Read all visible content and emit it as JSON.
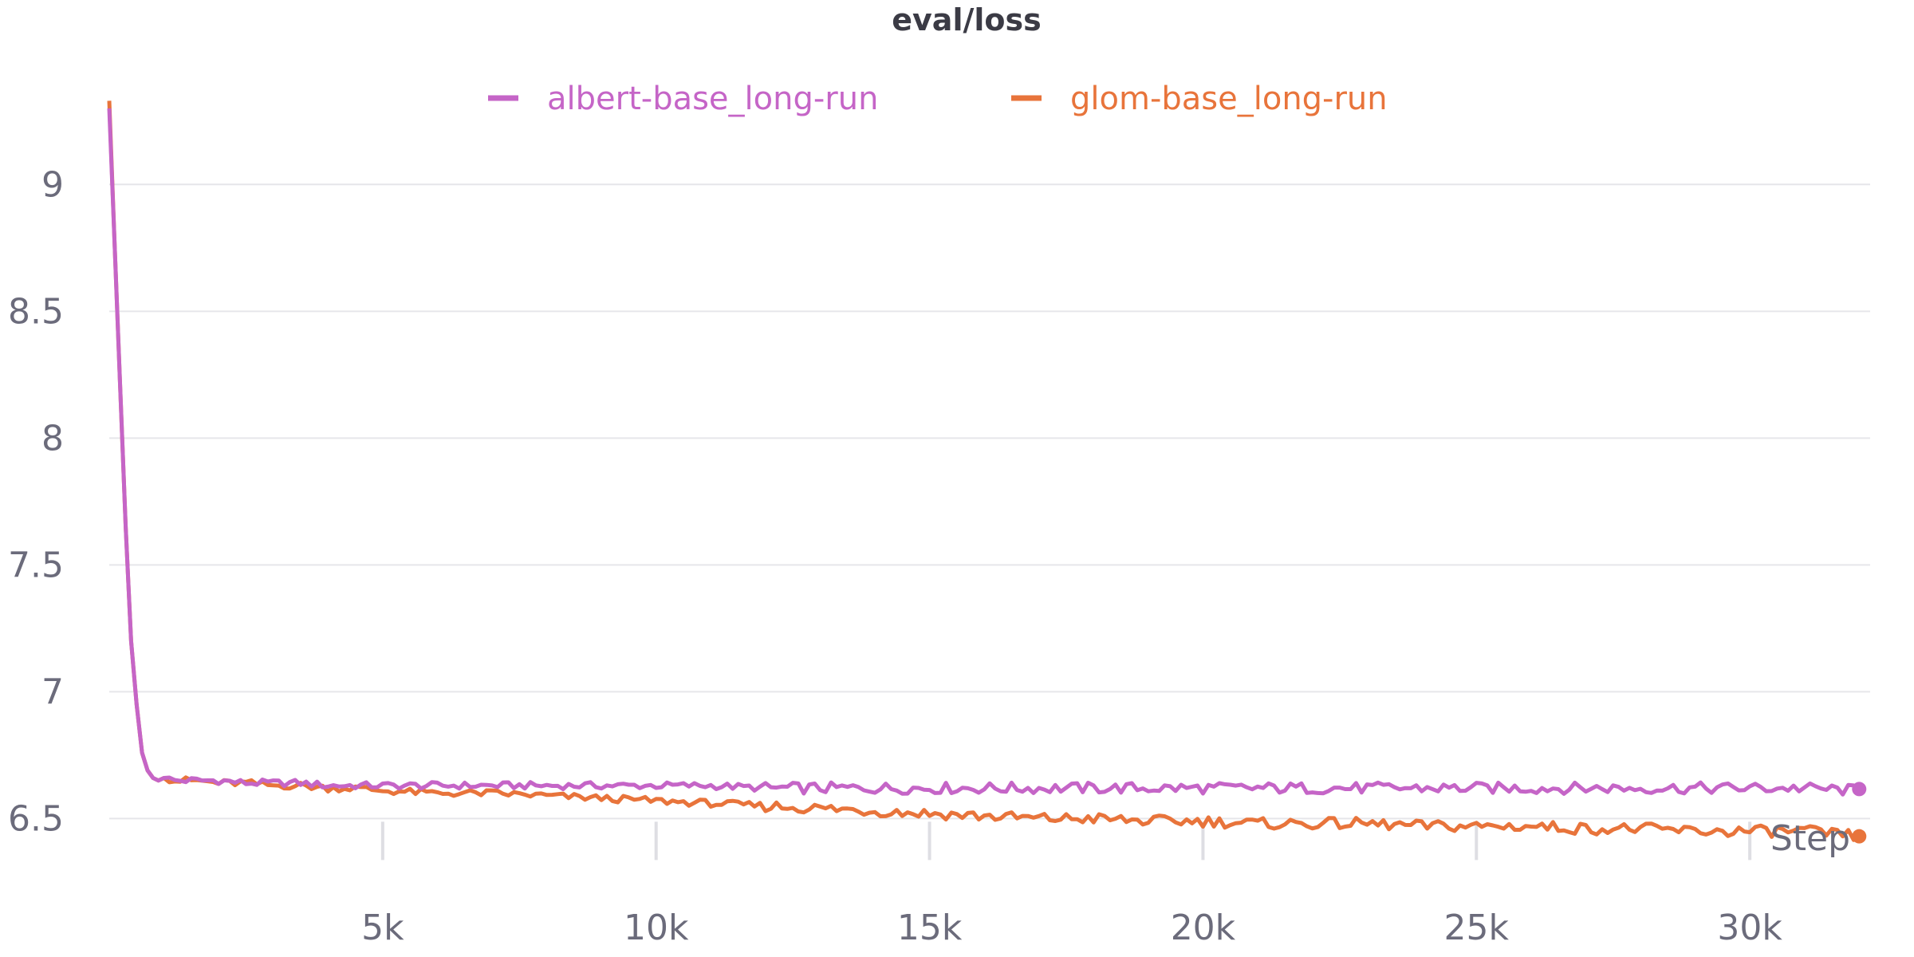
{
  "chart_data": {
    "type": "line",
    "title": "eval/loss",
    "xlabel": "Step",
    "ylabel": "",
    "xlim": [
      0,
      32200
    ],
    "ylim": [
      6.3,
      9.35
    ],
    "x_ticks": [
      5000,
      10000,
      15000,
      20000,
      25000,
      30000
    ],
    "x_tick_labels": [
      "5k",
      "10k",
      "15k",
      "20k",
      "25k",
      "30k"
    ],
    "y_ticks": [
      6.5,
      7,
      7.5,
      8,
      8.5,
      9
    ],
    "y_tick_labels": [
      "6.5",
      "7",
      "7.5",
      "8",
      "8.5",
      "9"
    ],
    "grid": true,
    "legend_position": "top-center",
    "series": [
      {
        "name": "albert-base_long-run",
        "color": "#c565c7",
        "x": [
          0,
          100,
          200,
          300,
          400,
          500,
          600,
          700,
          800,
          900,
          1000,
          1200,
          1400,
          1600,
          2000,
          2500,
          3000,
          3500,
          4000,
          4500,
          5000,
          6000,
          7000,
          8000,
          9000,
          10000,
          11000,
          12000,
          13000,
          14000,
          15000,
          16000,
          17000,
          18000,
          19000,
          20000,
          21000,
          22000,
          23000,
          24000,
          25000,
          26000,
          27000,
          28000,
          29000,
          30000,
          31000,
          32000
        ],
        "values": [
          9.3,
          8.75,
          8.2,
          7.65,
          7.2,
          6.95,
          6.76,
          6.69,
          6.66,
          6.65,
          6.66,
          6.65,
          6.65,
          6.65,
          6.65,
          6.64,
          6.64,
          6.64,
          6.63,
          6.63,
          6.63,
          6.63,
          6.63,
          6.63,
          6.63,
          6.63,
          6.63,
          6.62,
          6.62,
          6.62,
          6.62,
          6.62,
          6.62,
          6.62,
          6.62,
          6.62,
          6.62,
          6.62,
          6.62,
          6.62,
          6.62,
          6.62,
          6.62,
          6.62,
          6.62,
          6.62,
          6.62,
          6.61
        ]
      },
      {
        "name": "glom-base_long-run",
        "color": "#e8743b",
        "x": [
          0,
          100,
          200,
          300,
          400,
          500,
          600,
          700,
          800,
          900,
          1000,
          1200,
          1400,
          1600,
          2000,
          2500,
          3000,
          3500,
          4000,
          4500,
          5000,
          6000,
          7000,
          8000,
          9000,
          10000,
          11000,
          12000,
          13000,
          14000,
          15000,
          16000,
          17000,
          18000,
          19000,
          20000,
          21000,
          22000,
          23000,
          24000,
          25000,
          26000,
          27000,
          28000,
          29000,
          30000,
          31000,
          32000
        ],
        "values": [
          9.33,
          8.75,
          8.2,
          7.65,
          7.2,
          6.95,
          6.76,
          6.69,
          6.66,
          6.65,
          6.66,
          6.65,
          6.65,
          6.65,
          6.64,
          6.64,
          6.63,
          6.63,
          6.62,
          6.62,
          6.61,
          6.6,
          6.6,
          6.59,
          6.58,
          6.57,
          6.56,
          6.55,
          6.54,
          6.53,
          6.52,
          6.51,
          6.5,
          6.5,
          6.49,
          6.49,
          6.48,
          6.48,
          6.48,
          6.47,
          6.47,
          6.47,
          6.46,
          6.46,
          6.45,
          6.45,
          6.45,
          6.43
        ]
      }
    ]
  }
}
